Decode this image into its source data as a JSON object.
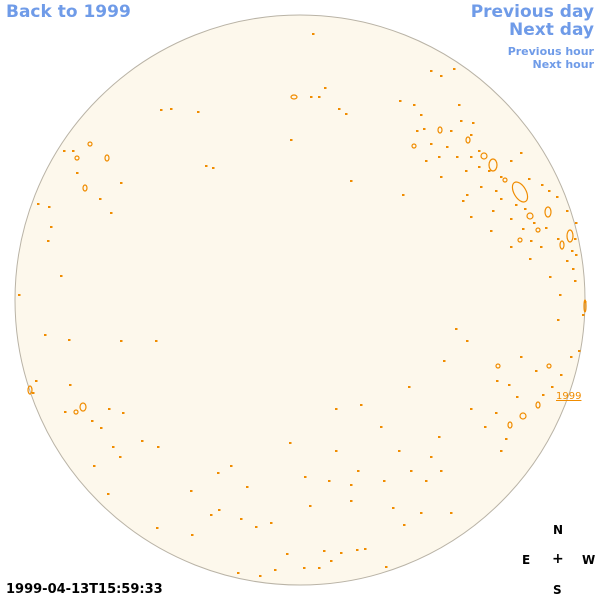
{
  "nav": {
    "back": "Back to 1999",
    "previous_day": "Previous day",
    "next_day": "Next day",
    "previous_hour": "Previous hour",
    "next_hour": "Next hour"
  },
  "timestamp": "1999-04-13T15:59:33",
  "compass": {
    "north": "N",
    "east": "E",
    "center": "+",
    "west": "W",
    "south": "S"
  },
  "region_label": "1999",
  "colors": {
    "disk_fill": "#fdf8ec",
    "disk_edge": "#b9b3a6",
    "contour": "#f08c00",
    "link": "#6f9be8"
  }
}
